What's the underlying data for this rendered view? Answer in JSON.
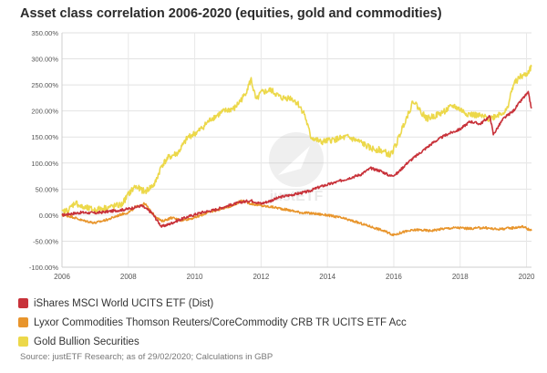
{
  "title": "Asset class correlation 2006-2020 (equities, gold and commodities)",
  "watermark": "justETF",
  "source": "Source: justETF Research; as of 29/02/2020; Calculations in GBP",
  "chart_data": {
    "type": "line",
    "title": "Asset class correlation 2006-2020 (equities, gold and commodities)",
    "xlabel": "",
    "ylabel": "",
    "xlim": [
      2006.0,
      2020.15
    ],
    "ylim": [
      -100,
      350
    ],
    "y_ticks": [
      -100,
      -50,
      0,
      50,
      100,
      150,
      200,
      250,
      300,
      350
    ],
    "y_tick_labels": [
      "-100.00%",
      "-50.00%",
      "0.00%",
      "50.00%",
      "100.00%",
      "150.00%",
      "200.00%",
      "250.00%",
      "300.00%",
      "350.00%"
    ],
    "x_ticks": [
      2006,
      2008,
      2010,
      2012,
      2014,
      2016,
      2018,
      2020
    ],
    "x_tick_labels": [
      "2006",
      "2008",
      "2010",
      "2012",
      "2014",
      "2016",
      "2018",
      "2020"
    ],
    "grid": true,
    "legend_position": "bottom-left",
    "series": [
      {
        "name": "iShares MSCI World UCITS ETF (Dist)",
        "color": "#c8323a",
        "x": [
          2006.0,
          2006.3,
          2006.6,
          2007.0,
          2007.4,
          2007.8,
          2008.0,
          2008.4,
          2008.7,
          2009.0,
          2009.2,
          2009.5,
          2009.8,
          2010.2,
          2010.6,
          2011.0,
          2011.4,
          2011.7,
          2012.0,
          2012.3,
          2012.6,
          2013.0,
          2013.4,
          2013.8,
          2014.2,
          2014.6,
          2015.0,
          2015.3,
          2015.6,
          2015.9,
          2016.1,
          2016.4,
          2016.8,
          2017.2,
          2017.6,
          2018.0,
          2018.3,
          2018.6,
          2018.9,
          2019.0,
          2019.3,
          2019.6,
          2019.9,
          2020.05,
          2020.15
        ],
        "values": [
          0,
          3,
          5,
          4,
          7,
          10,
          12,
          18,
          5,
          -22,
          -18,
          -10,
          -3,
          5,
          10,
          18,
          25,
          28,
          22,
          28,
          35,
          40,
          45,
          55,
          62,
          70,
          78,
          90,
          85,
          75,
          80,
          100,
          120,
          140,
          155,
          165,
          180,
          175,
          190,
          155,
          185,
          200,
          225,
          235,
          205
        ]
      },
      {
        "name": "Lyxor Commodities Thomson Reuters/CoreCommodity CRB TR UCITS ETF Acc",
        "color": "#e8952c",
        "x": [
          2006.0,
          2006.3,
          2006.6,
          2007.0,
          2007.4,
          2007.8,
          2008.0,
          2008.3,
          2008.5,
          2008.7,
          2009.0,
          2009.3,
          2009.6,
          2010.0,
          2010.4,
          2010.8,
          2011.2,
          2011.4,
          2011.7,
          2012.0,
          2012.4,
          2012.8,
          2013.2,
          2013.6,
          2014.0,
          2014.4,
          2014.8,
          2015.2,
          2015.6,
          2016.0,
          2016.3,
          2016.7,
          2017.1,
          2017.5,
          2017.9,
          2018.3,
          2018.7,
          2019.1,
          2019.5,
          2019.9,
          2020.15
        ],
        "values": [
          0,
          -3,
          -10,
          -15,
          -8,
          2,
          5,
          18,
          22,
          5,
          -12,
          -5,
          -10,
          -5,
          5,
          12,
          20,
          28,
          22,
          18,
          15,
          10,
          5,
          3,
          0,
          -5,
          -12,
          -20,
          -28,
          -38,
          -32,
          -28,
          -30,
          -26,
          -24,
          -26,
          -24,
          -27,
          -25,
          -22,
          -30
        ]
      },
      {
        "name": "Gold Bullion Securities",
        "color": "#ecd84a",
        "x": [
          2006.0,
          2006.2,
          2006.4,
          2006.6,
          2007.0,
          2007.4,
          2007.8,
          2008.0,
          2008.2,
          2008.5,
          2008.8,
          2009.0,
          2009.2,
          2009.5,
          2009.8,
          2010.1,
          2010.5,
          2010.9,
          2011.2,
          2011.5,
          2011.7,
          2011.85,
          2012.0,
          2012.3,
          2012.6,
          2012.9,
          2013.1,
          2013.3,
          2013.5,
          2013.8,
          2014.2,
          2014.6,
          2015.0,
          2015.3,
          2015.6,
          2015.9,
          2016.1,
          2016.3,
          2016.6,
          2016.8,
          2017.0,
          2017.4,
          2017.8,
          2018.2,
          2018.6,
          2018.9,
          2019.2,
          2019.4,
          2019.6,
          2019.8,
          2020.0,
          2020.15
        ],
        "values": [
          5,
          10,
          25,
          15,
          10,
          15,
          20,
          40,
          55,
          45,
          60,
          95,
          110,
          120,
          150,
          160,
          185,
          200,
          205,
          230,
          260,
          220,
          235,
          240,
          225,
          225,
          215,
          195,
          150,
          140,
          145,
          150,
          140,
          128,
          125,
          115,
          140,
          175,
          220,
          200,
          185,
          195,
          210,
          195,
          190,
          185,
          195,
          200,
          250,
          265,
          270,
          285
        ]
      }
    ]
  }
}
